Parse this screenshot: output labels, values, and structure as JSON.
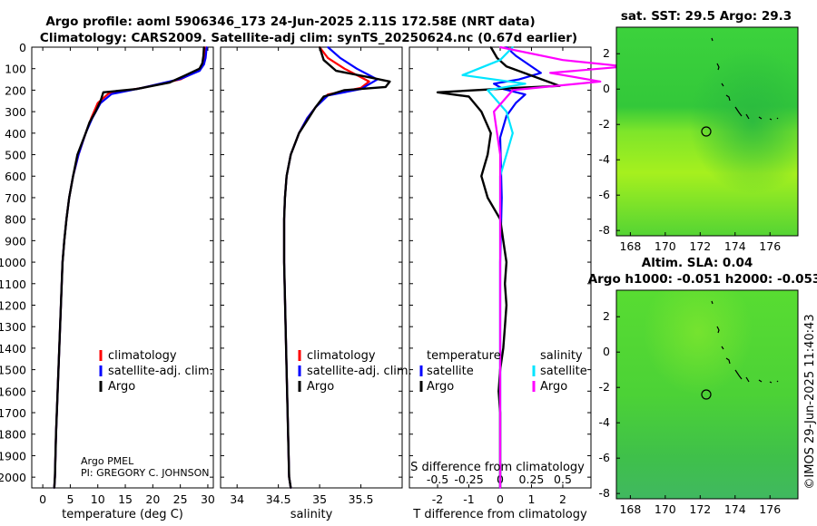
{
  "header": {
    "title_line1": "Argo profile: aoml 5906346_173 24-Jun-2025 2.11S 172.58E (NRT data)",
    "title_line2": "Climatology: CARS2009. Satellite-adj clim: synTS_20250624.nc (0.67d earlier)"
  },
  "depth_axis": {
    "ticks": [
      0,
      100,
      200,
      300,
      400,
      500,
      600,
      700,
      800,
      900,
      1000,
      1100,
      1200,
      1300,
      1400,
      1500,
      1600,
      1700,
      1800,
      1900,
      2000
    ]
  },
  "credit": {
    "line1": "Argo PMEL",
    "line2": "PI: GREGORY C. JOHNSON"
  },
  "legends": {
    "climatology": "climatology",
    "satellite_adj": "satellite-adj. clim.",
    "argo": "Argo",
    "temperature": "temperature",
    "salinity": "salinity",
    "satellite": "satellite"
  },
  "colors": {
    "climatology": "#ff0000",
    "satellite": "#0000ff",
    "argo": "#000000",
    "sal_satellite": "#00e5ff",
    "sal_argo": "#ff00ff"
  },
  "maps": {
    "sst_title": "sat. SST: 29.5 Argo: 29.3",
    "sla_title1": "Altim. SLA: 0.04",
    "sla_title2": "Argo h1000: -0.051 h2000: -0.053",
    "timestamp": "©IMOS 29-Jun-2025 11:40:43",
    "x_ticks": [
      "168",
      "170",
      "172",
      "174",
      "176"
    ],
    "y_ticks": [
      "2",
      "0",
      "-2",
      "-4",
      "-6",
      "-8"
    ]
  },
  "chart_data": [
    {
      "type": "line",
      "title": "",
      "xlabel": "temperature (deg C)",
      "ylabel": "",
      "xlim": [
        -2,
        31
      ],
      "ylim": [
        2050,
        0
      ],
      "xticks": [
        0,
        5,
        10,
        15,
        20,
        25,
        30
      ],
      "series": [
        {
          "name": "climatology",
          "color": "#ff0000",
          "points": [
            [
              29.5,
              0
            ],
            [
              29.4,
              40
            ],
            [
              29.0,
              80
            ],
            [
              28.2,
              110
            ],
            [
              25,
              150
            ],
            [
              18,
              190
            ],
            [
              12,
              215
            ],
            [
              10,
              260
            ],
            [
              8.8,
              330
            ],
            [
              7.8,
              400
            ],
            [
              6.5,
              500
            ],
            [
              5.5,
              600
            ],
            [
              4.8,
              700
            ],
            [
              4.3,
              800
            ],
            [
              3.9,
              900
            ],
            [
              3.6,
              1000
            ],
            [
              3.3,
              1200
            ],
            [
              3.0,
              1400
            ],
            [
              2.7,
              1600
            ],
            [
              2.4,
              1800
            ],
            [
              2.2,
              2000
            ],
            [
              2.1,
              2050
            ]
          ]
        },
        {
          "name": "satellite-adj. clim.",
          "color": "#0000ff",
          "points": [
            [
              29.8,
              0
            ],
            [
              29.6,
              50
            ],
            [
              29.3,
              80
            ],
            [
              28.5,
              110
            ],
            [
              25,
              148
            ],
            [
              18,
              190
            ],
            [
              12.5,
              218
            ],
            [
              10.5,
              260
            ],
            [
              9,
              330
            ],
            [
              7.8,
              400
            ],
            [
              6.5,
              500
            ],
            [
              5.5,
              600
            ],
            [
              4.8,
              700
            ],
            [
              4.3,
              800
            ],
            [
              3.9,
              900
            ],
            [
              3.6,
              1000
            ],
            [
              3.3,
              1200
            ],
            [
              3.0,
              1400
            ],
            [
              2.7,
              1600
            ],
            [
              2.4,
              1800
            ],
            [
              2.2,
              2000
            ],
            [
              2.1,
              2050
            ]
          ]
        },
        {
          "name": "Argo",
          "color": "#000000",
          "points": [
            [
              29.3,
              0
            ],
            [
              29.2,
              40
            ],
            [
              29.0,
              75
            ],
            [
              28.5,
              100
            ],
            [
              26,
              130
            ],
            [
              23,
              165
            ],
            [
              17,
              195
            ],
            [
              11,
              210
            ],
            [
              10.5,
              250
            ],
            [
              9.6,
              300
            ],
            [
              8.5,
              350
            ],
            [
              7.8,
              400
            ],
            [
              6.3,
              500
            ],
            [
              5.5,
              600
            ],
            [
              4.8,
              700
            ],
            [
              4.3,
              800
            ],
            [
              3.9,
              900
            ],
            [
              3.6,
              1000
            ],
            [
              3.3,
              1200
            ],
            [
              3.0,
              1400
            ],
            [
              2.7,
              1600
            ],
            [
              2.4,
              1800
            ],
            [
              2.2,
              2000
            ],
            [
              2.1,
              2050
            ]
          ]
        }
      ]
    },
    {
      "type": "line",
      "xlabel": "salinity",
      "ylim": [
        2050,
        0
      ],
      "xlim": [
        33.8,
        36.0
      ],
      "xticks": [
        34,
        34.5,
        35,
        35.5
      ],
      "xticklabels": [
        "34",
        "34.5",
        "35",
        "35.5"
      ],
      "series": [
        {
          "name": "climatology",
          "color": "#ff0000",
          "points": [
            [
              35.0,
              0
            ],
            [
              35.1,
              50
            ],
            [
              35.3,
              100
            ],
            [
              35.6,
              160
            ],
            [
              35.5,
              190
            ],
            [
              35.1,
              220
            ],
            [
              34.95,
              280
            ],
            [
              34.85,
              330
            ],
            [
              34.75,
              400
            ],
            [
              34.65,
              500
            ],
            [
              34.6,
              600
            ],
            [
              34.58,
              700
            ],
            [
              34.57,
              800
            ],
            [
              34.57,
              1000
            ],
            [
              34.6,
              1500
            ],
            [
              34.63,
              2000
            ],
            [
              34.65,
              2050
            ]
          ]
        },
        {
          "name": "satellite-adj. clim.",
          "color": "#0000ff",
          "points": [
            [
              35.1,
              0
            ],
            [
              35.25,
              50
            ],
            [
              35.45,
              100
            ],
            [
              35.7,
              150
            ],
            [
              35.5,
              195
            ],
            [
              35.1,
              225
            ],
            [
              34.95,
              280
            ],
            [
              34.85,
              330
            ],
            [
              34.75,
              400
            ],
            [
              34.65,
              500
            ],
            [
              34.6,
              600
            ],
            [
              34.58,
              700
            ],
            [
              34.57,
              800
            ],
            [
              34.57,
              1000
            ],
            [
              34.6,
              1500
            ],
            [
              34.63,
              2000
            ],
            [
              34.65,
              2050
            ]
          ]
        },
        {
          "name": "Argo",
          "color": "#000000",
          "points": [
            [
              35.0,
              0
            ],
            [
              35.05,
              60
            ],
            [
              35.2,
              110
            ],
            [
              35.6,
              140
            ],
            [
              35.85,
              160
            ],
            [
              35.8,
              185
            ],
            [
              35.3,
              200
            ],
            [
              35.05,
              230
            ],
            [
              34.95,
              280
            ],
            [
              34.85,
              340
            ],
            [
              34.75,
              400
            ],
            [
              34.65,
              500
            ],
            [
              34.6,
              600
            ],
            [
              34.58,
              700
            ],
            [
              34.57,
              800
            ],
            [
              34.57,
              1000
            ],
            [
              34.6,
              1500
            ],
            [
              34.63,
              2000
            ],
            [
              34.65,
              2050
            ]
          ]
        }
      ]
    },
    {
      "type": "line",
      "xlabel": "T difference from climatology",
      "secondary_xlabel": "S difference from climatology",
      "ylim": [
        2050,
        0
      ],
      "xlim": [
        -2.9,
        2.9
      ],
      "xticks": [
        -2,
        -1,
        0,
        1,
        2
      ],
      "xticklabels": [
        "-2",
        "-1",
        "0",
        "1",
        "2"
      ],
      "sticks": [
        -0.5,
        -0.25,
        0,
        0.25,
        0.5
      ],
      "sticklabels": [
        "-0.5",
        "-0.25",
        "0",
        "0.25",
        "0.5"
      ],
      "series": [
        {
          "name": "temperature satellite",
          "color": "#0000ff",
          "points": [
            [
              0.2,
              0
            ],
            [
              0.5,
              40
            ],
            [
              1.3,
              120
            ],
            [
              0.6,
              150
            ],
            [
              -0.2,
              170
            ],
            [
              0.1,
              195
            ],
            [
              0.8,
              220
            ],
            [
              0.5,
              260
            ],
            [
              0.2,
              320
            ],
            [
              0.0,
              420
            ],
            [
              0.05,
              700
            ],
            [
              0.0,
              1000
            ],
            [
              0.0,
              2050
            ]
          ]
        },
        {
          "name": "temperature Argo",
          "color": "#000000",
          "points": [
            [
              -0.3,
              0
            ],
            [
              -0.1,
              50
            ],
            [
              0.2,
              90
            ],
            [
              1.9,
              180
            ],
            [
              0.5,
              190
            ],
            [
              -2.0,
              210
            ],
            [
              -1.0,
              230
            ],
            [
              -0.6,
              300
            ],
            [
              -0.3,
              400
            ],
            [
              -0.4,
              500
            ],
            [
              -0.6,
              600
            ],
            [
              -0.4,
              700
            ],
            [
              0.0,
              800
            ],
            [
              0.1,
              900
            ],
            [
              0.2,
              1000
            ],
            [
              0.15,
              1100
            ],
            [
              0.2,
              1200
            ],
            [
              0.15,
              1300
            ],
            [
              0.1,
              1400
            ],
            [
              0.0,
              1500
            ],
            [
              -0.05,
              1600
            ],
            [
              0.0,
              1700
            ],
            [
              0.0,
              2050
            ]
          ]
        },
        {
          "name": "salinity satellite",
          "color": "#00e5ff",
          "points": [
            [
              0.1,
              0
            ],
            [
              0.0,
              60
            ],
            [
              -0.3,
              130
            ],
            [
              0.2,
              170
            ],
            [
              -0.1,
              200
            ],
            [
              0.05,
              300
            ],
            [
              0.1,
              400
            ],
            [
              0.0,
              600
            ],
            [
              0.0,
              2050
            ]
          ]
        },
        {
          "name": "salinity Argo",
          "color": "#ff00ff",
          "points": [
            [
              0.0,
              0
            ],
            [
              0.5,
              60
            ],
            [
              1.0,
              90
            ],
            [
              0.4,
              120
            ],
            [
              0.8,
              160
            ],
            [
              0.1,
              200
            ],
            [
              -0.05,
              300
            ],
            [
              0.0,
              500
            ],
            [
              0.0,
              2050
            ]
          ]
        }
      ]
    }
  ]
}
